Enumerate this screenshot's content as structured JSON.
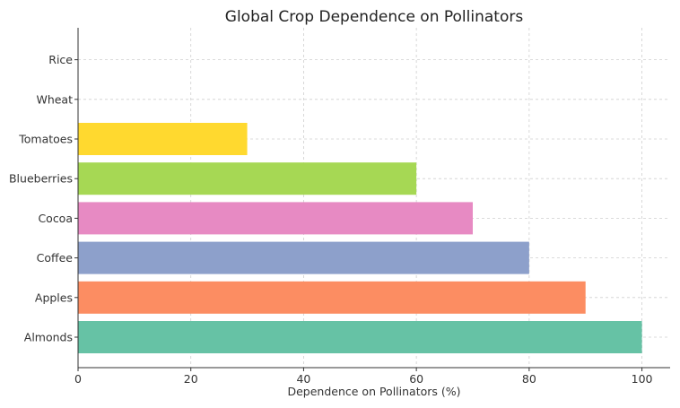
{
  "chart_data": {
    "type": "bar",
    "orientation": "horizontal",
    "title": "Global Crop Dependence on Pollinators",
    "xlabel": "Dependence on Pollinators (%)",
    "ylabel": "",
    "xlim": [
      0,
      105
    ],
    "xticks": [
      "0",
      "20",
      "40",
      "60",
      "80",
      "100"
    ],
    "grid": true,
    "categories": [
      "Almonds",
      "Apples",
      "Coffee",
      "Cocoa",
      "Blueberries",
      "Tomatoes",
      "Wheat",
      "Rice"
    ],
    "values": [
      100,
      90,
      80,
      70,
      60,
      30,
      0,
      0
    ],
    "colors": [
      "#66c2a5",
      "#fc8d62",
      "#8da0cb",
      "#e78ac3",
      "#a6d854",
      "#ffd92f",
      "#e5c494",
      "#b3b3b3"
    ]
  }
}
